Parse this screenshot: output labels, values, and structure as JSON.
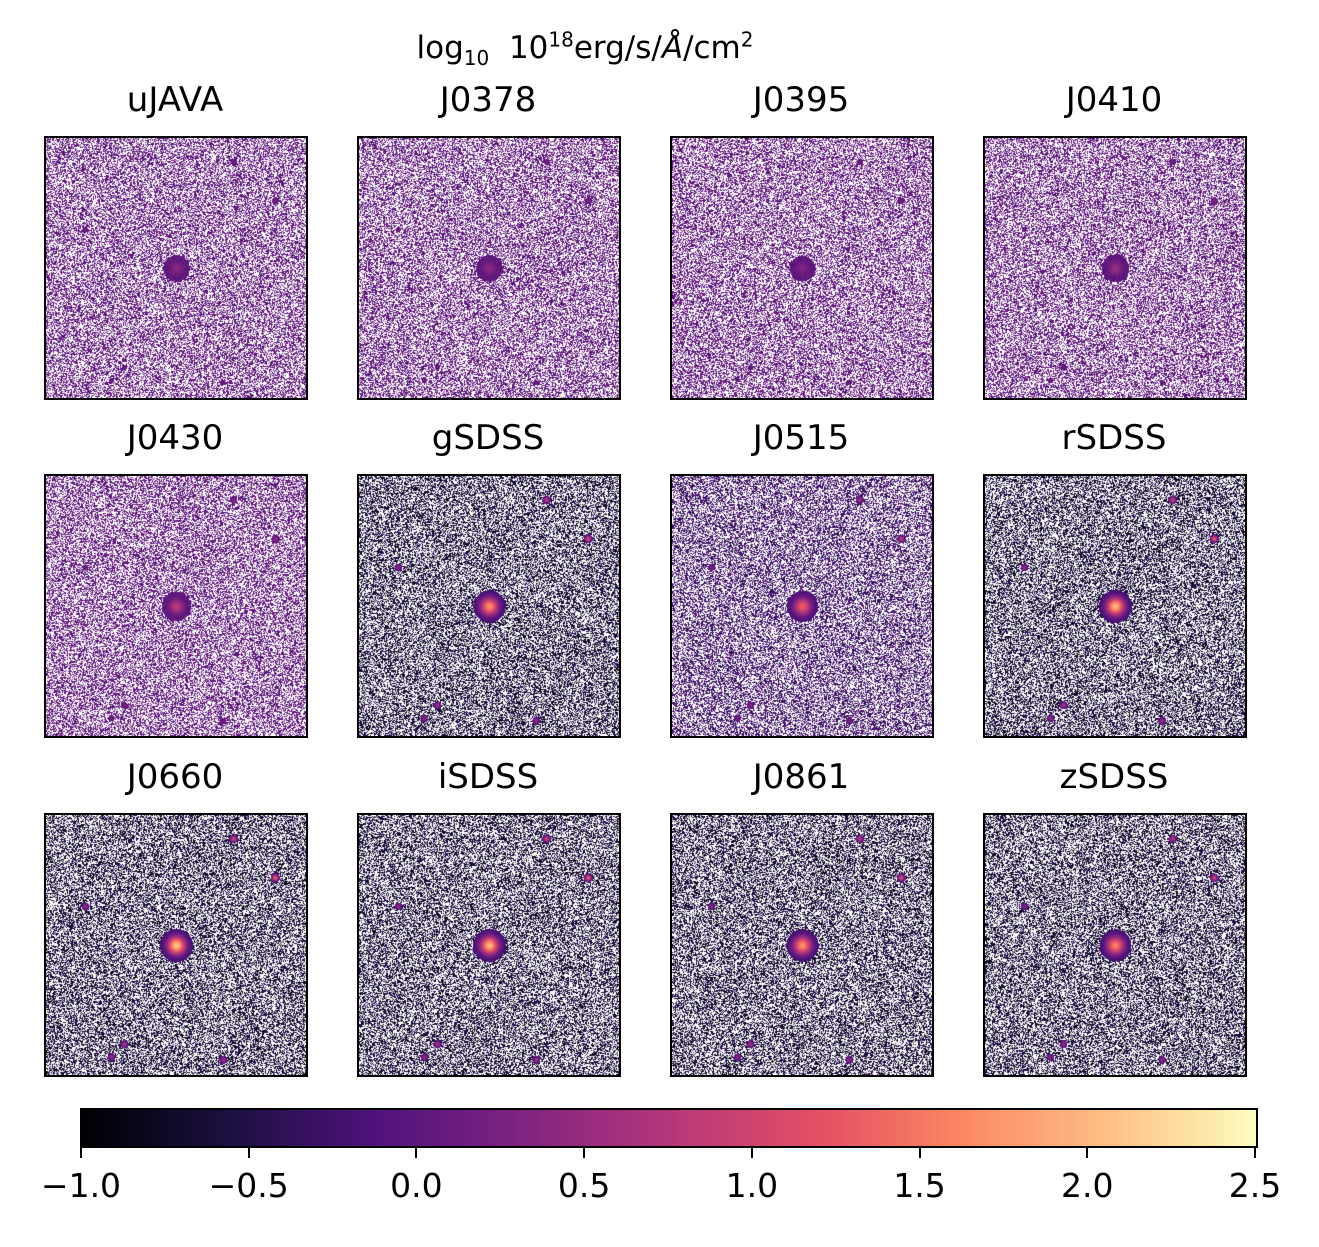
{
  "figure": {
    "title_parts": {
      "log": "log",
      "log_sub": "10",
      "base": "10",
      "base_sup": "18",
      "units": "erg/s/",
      "angstrom": "Å",
      "area": "/cm",
      "area_sup": "2"
    },
    "colormap": "magma",
    "panels": [
      {
        "label": "uJAVA",
        "signal": 0.35,
        "noise": "purple"
      },
      {
        "label": "J0378",
        "signal": 0.35,
        "noise": "purple"
      },
      {
        "label": "J0395",
        "signal": 0.3,
        "noise": "purple"
      },
      {
        "label": "J0410",
        "signal": 0.4,
        "noise": "purple"
      },
      {
        "label": "J0430",
        "signal": 0.55,
        "noise": "purple"
      },
      {
        "label": "gSDSS",
        "signal": 1.0,
        "noise": "dark"
      },
      {
        "label": "J0515",
        "signal": 0.8,
        "noise": "mixed"
      },
      {
        "label": "rSDSS",
        "signal": 1.15,
        "noise": "dark"
      },
      {
        "label": "J0660",
        "signal": 1.2,
        "noise": "dark"
      },
      {
        "label": "iSDSS",
        "signal": 1.15,
        "noise": "dark"
      },
      {
        "label": "J0861",
        "signal": 1.0,
        "noise": "dark"
      },
      {
        "label": "zSDSS",
        "signal": 0.95,
        "noise": "dark"
      }
    ],
    "colorbar": {
      "min": -1.0,
      "max": 2.5,
      "ticks": [
        -1.0,
        -0.5,
        0.0,
        0.5,
        1.0,
        1.5,
        2.0,
        2.5
      ],
      "tick_labels": [
        "−1.0",
        "−0.5",
        "0.0",
        "0.5",
        "1.0",
        "1.5",
        "2.0",
        "2.5"
      ]
    }
  }
}
